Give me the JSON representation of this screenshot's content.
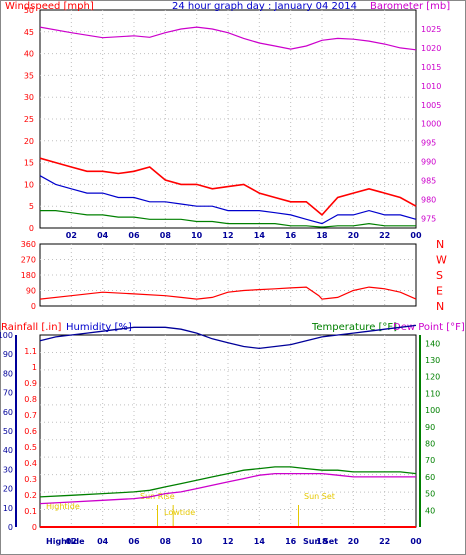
{
  "title": "24 hour graph day : January 04 2014",
  "colors": {
    "red": "#ff0000",
    "magenta": "#cc00cc",
    "green": "#008000",
    "blue": "#0000cc",
    "darkblue": "#000099",
    "yellow": "#e6c800",
    "grid": "#c0c0c0"
  },
  "chart_data": [
    {
      "type": "line",
      "name": "wind-baro",
      "left_axis": {
        "label": "Windspeed [mph]",
        "ticks": [
          "0",
          "5",
          "10",
          "15",
          "20",
          "25",
          "30",
          "35",
          "40",
          "45",
          "50"
        ],
        "ylim": [
          0,
          50
        ]
      },
      "right_axis": {
        "label": "Barometer [mb]",
        "ticks": [
          "975",
          "980",
          "985",
          "990",
          "995",
          "1000",
          "1005",
          "1010",
          "1015",
          "1020",
          "1025"
        ],
        "ylim": [
          972.5,
          1030
        ]
      },
      "x_ticks": [
        "02",
        "04",
        "06",
        "08",
        "10",
        "12",
        "14",
        "16",
        "18",
        "20",
        "22",
        "00"
      ],
      "series": [
        {
          "key": "barometer",
          "axis": "right",
          "color": "magenta",
          "points": [
            [
              0,
              1025.5
            ],
            [
              2,
              1024
            ],
            [
              4,
              1022.7
            ],
            [
              6,
              1023.2
            ],
            [
              7,
              1022.8
            ],
            [
              8,
              1024
            ],
            [
              9,
              1025
            ],
            [
              10,
              1025.5
            ],
            [
              11,
              1025
            ],
            [
              12,
              1024
            ],
            [
              13,
              1022.5
            ],
            [
              14,
              1021.3
            ],
            [
              15,
              1020.5
            ],
            [
              16,
              1019.7
            ],
            [
              17,
              1020.5
            ],
            [
              18,
              1022
            ],
            [
              19,
              1022.5
            ],
            [
              20,
              1022.3
            ],
            [
              21,
              1021.8
            ],
            [
              22,
              1021
            ],
            [
              23,
              1020
            ],
            [
              24,
              1019.5
            ]
          ]
        },
        {
          "key": "wind_gust",
          "axis": "left",
          "color": "red",
          "points": [
            [
              0,
              16
            ],
            [
              1,
              15
            ],
            [
              2,
              14
            ],
            [
              3,
              13
            ],
            [
              4,
              13
            ],
            [
              5,
              12.5
            ],
            [
              6,
              13
            ],
            [
              7,
              14
            ],
            [
              8,
              11
            ],
            [
              9,
              10
            ],
            [
              10,
              10
            ],
            [
              11,
              9
            ],
            [
              12,
              9.5
            ],
            [
              13,
              10
            ],
            [
              14,
              8
            ],
            [
              15,
              7
            ],
            [
              16,
              6
            ],
            [
              17,
              6
            ],
            [
              18,
              3
            ],
            [
              19,
              7
            ],
            [
              20,
              8
            ],
            [
              21,
              9
            ],
            [
              22,
              8
            ],
            [
              23,
              7
            ],
            [
              24,
              5
            ]
          ]
        },
        {
          "key": "wind_avg",
          "axis": "left",
          "color": "blue",
          "points": [
            [
              0,
              12
            ],
            [
              1,
              10
            ],
            [
              2,
              9
            ],
            [
              3,
              8
            ],
            [
              4,
              8
            ],
            [
              5,
              7
            ],
            [
              6,
              7
            ],
            [
              7,
              6
            ],
            [
              8,
              6
            ],
            [
              9,
              5.5
            ],
            [
              10,
              5
            ],
            [
              11,
              5
            ],
            [
              12,
              4
            ],
            [
              13,
              4
            ],
            [
              14,
              4
            ],
            [
              15,
              3.5
            ],
            [
              16,
              3
            ],
            [
              17,
              2
            ],
            [
              18,
              1
            ],
            [
              19,
              3
            ],
            [
              20,
              3
            ],
            [
              21,
              4
            ],
            [
              22,
              3
            ],
            [
              23,
              3
            ],
            [
              24,
              2
            ]
          ]
        },
        {
          "key": "wind_speed",
          "axis": "left",
          "color": "green",
          "points": [
            [
              0,
              4
            ],
            [
              1,
              4
            ],
            [
              2,
              3.5
            ],
            [
              3,
              3
            ],
            [
              4,
              3
            ],
            [
              5,
              2.5
            ],
            [
              6,
              2.5
            ],
            [
              7,
              2
            ],
            [
              8,
              2
            ],
            [
              9,
              2
            ],
            [
              10,
              1.5
            ],
            [
              11,
              1.5
            ],
            [
              12,
              1
            ],
            [
              13,
              1
            ],
            [
              14,
              1
            ],
            [
              15,
              1
            ],
            [
              16,
              0.5
            ],
            [
              17,
              0.5
            ],
            [
              18,
              0.2
            ],
            [
              19,
              0.5
            ],
            [
              20,
              0.5
            ],
            [
              21,
              1
            ],
            [
              22,
              0.5
            ],
            [
              23,
              0.5
            ],
            [
              24,
              0.5
            ]
          ]
        }
      ]
    },
    {
      "type": "line",
      "name": "wind-direction",
      "left_axis": {
        "ticks": [
          "0",
          "90",
          "180",
          "270",
          "360"
        ],
        "ylim": [
          0,
          360
        ]
      },
      "right_axis": {
        "ticks": [
          "N",
          "W",
          "S",
          "E",
          "N"
        ]
      },
      "series": [
        {
          "key": "direction",
          "color": "red",
          "points": [
            [
              0,
              40
            ],
            [
              2,
              60
            ],
            [
              4,
              80
            ],
            [
              6,
              70
            ],
            [
              8,
              60
            ],
            [
              9,
              50
            ],
            [
              10,
              40
            ],
            [
              11,
              50
            ],
            [
              12,
              80
            ],
            [
              13,
              90
            ],
            [
              14,
              95
            ],
            [
              15,
              100
            ],
            [
              16,
              105
            ],
            [
              17,
              110
            ],
            [
              17.8,
              60
            ],
            [
              18,
              40
            ],
            [
              19,
              50
            ],
            [
              20,
              90
            ],
            [
              21,
              110
            ],
            [
              22,
              100
            ],
            [
              23,
              80
            ],
            [
              24,
              40
            ]
          ]
        }
      ]
    },
    {
      "type": "line",
      "name": "rain-humidity-temp",
      "labels": {
        "rainfall": "Rainfall [.in]",
        "humidity": "Humidity [%]",
        "temperature": "Temperature [°F]",
        "dewpoint": "Dew Point [°F]"
      },
      "rain_axis": {
        "ticks": [
          "0",
          "0.1",
          "0.2",
          "0.3",
          "0.4",
          "0.5",
          "0.6",
          "0.7",
          "0.8",
          "0.9",
          "1",
          "1.1"
        ],
        "ylim": [
          0,
          1.2
        ]
      },
      "humidity_axis": {
        "ticks": [
          "0",
          "10",
          "20",
          "30",
          "40",
          "50",
          "60",
          "70",
          "80",
          "90",
          "100"
        ],
        "ylim": [
          0,
          100
        ]
      },
      "temp_axis": {
        "ticks": [
          "40",
          "50",
          "60",
          "70",
          "80",
          "90",
          "100",
          "110",
          "120",
          "130",
          "140"
        ],
        "ylim": [
          30,
          145
        ]
      },
      "annotations": {
        "hightide": "Hightide",
        "sunrise": "Sun Rise",
        "sunset": "Sun Set",
        "lowtide": "Lowtide",
        "hightide2": "Hightide"
      },
      "series": [
        {
          "key": "humidity",
          "color": "darkblue",
          "points": [
            [
              0,
              97
            ],
            [
              1,
              99
            ],
            [
              2,
              100
            ],
            [
              3,
              101
            ],
            [
              4,
              102
            ],
            [
              5,
              103
            ],
            [
              6,
              104
            ],
            [
              7,
              104
            ],
            [
              8,
              104
            ],
            [
              9,
              103
            ],
            [
              10,
              101
            ],
            [
              11,
              98
            ],
            [
              12,
              96
            ],
            [
              13,
              94
            ],
            [
              14,
              93
            ],
            [
              15,
              94
            ],
            [
              16,
              95
            ],
            [
              17,
              97
            ],
            [
              18,
              99
            ],
            [
              19,
              100
            ],
            [
              20,
              101
            ],
            [
              21,
              102
            ],
            [
              22,
              103
            ],
            [
              23,
              104
            ],
            [
              24,
              105
            ]
          ]
        },
        {
          "key": "temperature",
          "color": "green",
          "points": [
            [
              0,
              48
            ],
            [
              2,
              49
            ],
            [
              4,
              50
            ],
            [
              6,
              51
            ],
            [
              7,
              52
            ],
            [
              8,
              54
            ],
            [
              9,
              56
            ],
            [
              10,
              58
            ],
            [
              11,
              60
            ],
            [
              12,
              62
            ],
            [
              13,
              64
            ],
            [
              14,
              65
            ],
            [
              15,
              66
            ],
            [
              16,
              66
            ],
            [
              17,
              65
            ],
            [
              18,
              64
            ],
            [
              19,
              64
            ],
            [
              20,
              63
            ],
            [
              21,
              63
            ],
            [
              22,
              63
            ],
            [
              23,
              63
            ],
            [
              24,
              62
            ]
          ]
        },
        {
          "key": "dewpoint",
          "color": "magenta",
          "points": [
            [
              0,
              44
            ],
            [
              2,
              45
            ],
            [
              4,
              46
            ],
            [
              6,
              47
            ],
            [
              7,
              48
            ],
            [
              8,
              50
            ],
            [
              9,
              51
            ],
            [
              10,
              53
            ],
            [
              11,
              55
            ],
            [
              12,
              57
            ],
            [
              13,
              59
            ],
            [
              14,
              61
            ],
            [
              15,
              62
            ],
            [
              16,
              62
            ],
            [
              17,
              62
            ],
            [
              18,
              62
            ],
            [
              19,
              61
            ],
            [
              20,
              60
            ],
            [
              21,
              60
            ],
            [
              22,
              60
            ],
            [
              23,
              60
            ],
            [
              24,
              60
            ]
          ]
        },
        {
          "key": "rainfall",
          "color": "red",
          "points": [
            [
              0,
              0
            ],
            [
              24,
              0
            ]
          ]
        }
      ]
    }
  ]
}
